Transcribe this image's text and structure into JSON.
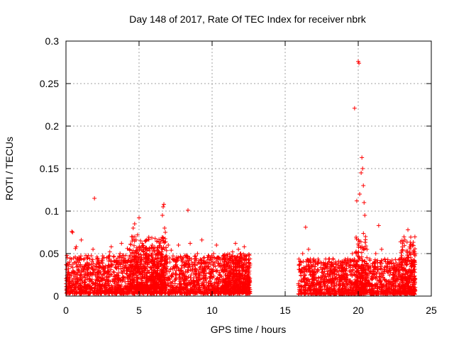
{
  "chart_data": {
    "type": "scatter",
    "title": "Day 148 of 2017, Rate Of TEC Index for receiver nbrk",
    "xlabel": "GPS time / hours",
    "ylabel": "ROTI / TECUs",
    "xlim": [
      0,
      25
    ],
    "ylim": [
      0,
      0.3
    ],
    "grid": true,
    "marker": "+",
    "color": "#ff0000",
    "x_ticks": [
      {
        "value": 0,
        "label": "0"
      },
      {
        "value": 5,
        "label": "5"
      },
      {
        "value": 10,
        "label": "10"
      },
      {
        "value": 15,
        "label": "15"
      },
      {
        "value": 20,
        "label": "20"
      },
      {
        "value": 25,
        "label": "25"
      }
    ],
    "y_ticks": [
      {
        "value": 0,
        "label": "0"
      },
      {
        "value": 0.05,
        "label": "0.05"
      },
      {
        "value": 0.1,
        "label": "0.1"
      },
      {
        "value": 0.15,
        "label": "0.15"
      },
      {
        "value": 0.2,
        "label": "0.2"
      },
      {
        "value": 0.25,
        "label": "0.25"
      },
      {
        "value": 0.3,
        "label": "0.3"
      }
    ],
    "series": [
      {
        "name": "ROTI",
        "points": [
          [
            0.1,
            0.008
          ],
          [
            0.2,
            0.022
          ],
          [
            0.25,
            0.04
          ],
          [
            0.35,
            0.035
          ],
          [
            0.4,
            0.076
          ],
          [
            0.45,
            0.075
          ],
          [
            0.5,
            0.015
          ],
          [
            0.6,
            0.028
          ],
          [
            0.65,
            0.056
          ],
          [
            0.7,
            0.058
          ],
          [
            0.8,
            0.03
          ],
          [
            0.9,
            0.02
          ],
          [
            1.0,
            0.012
          ],
          [
            1.05,
            0.066
          ],
          [
            1.1,
            0.035
          ],
          [
            1.3,
            0.022
          ],
          [
            1.5,
            0.038
          ],
          [
            1.7,
            0.018
          ],
          [
            1.85,
            0.055
          ],
          [
            1.95,
            0.115
          ],
          [
            2.1,
            0.02
          ],
          [
            2.3,
            0.034
          ],
          [
            2.5,
            0.042
          ],
          [
            2.7,
            0.018
          ],
          [
            2.9,
            0.036
          ],
          [
            3.0,
            0.052
          ],
          [
            3.1,
            0.058
          ],
          [
            3.3,
            0.028
          ],
          [
            3.5,
            0.04
          ],
          [
            3.7,
            0.05
          ],
          [
            3.8,
            0.062
          ],
          [
            4.0,
            0.042
          ],
          [
            4.2,
            0.056
          ],
          [
            4.4,
            0.048
          ],
          [
            4.5,
            0.07
          ],
          [
            4.6,
            0.08
          ],
          [
            4.7,
            0.085
          ],
          [
            4.8,
            0.066
          ],
          [
            4.9,
            0.072
          ],
          [
            5.0,
            0.092
          ],
          [
            5.1,
            0.065
          ],
          [
            5.3,
            0.052
          ],
          [
            5.5,
            0.044
          ],
          [
            5.7,
            0.056
          ],
          [
            5.9,
            0.06
          ],
          [
            6.1,
            0.038
          ],
          [
            6.3,
            0.05
          ],
          [
            6.5,
            0.066
          ],
          [
            6.6,
            0.095
          ],
          [
            6.65,
            0.105
          ],
          [
            6.7,
            0.108
          ],
          [
            6.75,
            0.08
          ],
          [
            6.8,
            0.075
          ],
          [
            7.0,
            0.06
          ],
          [
            7.2,
            0.054
          ],
          [
            7.5,
            0.04
          ],
          [
            7.7,
            0.06
          ],
          [
            7.9,
            0.042
          ],
          [
            8.1,
            0.034
          ],
          [
            8.35,
            0.101
          ],
          [
            8.5,
            0.062
          ],
          [
            8.8,
            0.04
          ],
          [
            9.0,
            0.05
          ],
          [
            9.3,
            0.066
          ],
          [
            9.5,
            0.035
          ],
          [
            9.8,
            0.032
          ],
          [
            10.1,
            0.05
          ],
          [
            10.3,
            0.06
          ],
          [
            10.5,
            0.028
          ],
          [
            10.8,
            0.03
          ],
          [
            11.0,
            0.036
          ],
          [
            11.2,
            0.044
          ],
          [
            11.4,
            0.052
          ],
          [
            11.6,
            0.062
          ],
          [
            11.8,
            0.055
          ],
          [
            12.0,
            0.04
          ],
          [
            12.2,
            0.058
          ],
          [
            12.4,
            0.03
          ],
          [
            16.1,
            0.018
          ],
          [
            16.2,
            0.05
          ],
          [
            16.4,
            0.081
          ],
          [
            16.6,
            0.055
          ],
          [
            16.9,
            0.03
          ],
          [
            17.2,
            0.038
          ],
          [
            17.5,
            0.028
          ],
          [
            17.8,
            0.036
          ],
          [
            18.1,
            0.03
          ],
          [
            18.4,
            0.032
          ],
          [
            18.7,
            0.022
          ],
          [
            19.0,
            0.03
          ],
          [
            19.3,
            0.04
          ],
          [
            19.6,
            0.05
          ],
          [
            19.75,
            0.221
          ],
          [
            19.9,
            0.112
          ],
          [
            20.0,
            0.276
          ],
          [
            20.05,
            0.274
          ],
          [
            20.1,
            0.12
          ],
          [
            20.2,
            0.145
          ],
          [
            20.25,
            0.163
          ],
          [
            20.3,
            0.15
          ],
          [
            20.35,
            0.13
          ],
          [
            20.4,
            0.11
          ],
          [
            20.45,
            0.095
          ],
          [
            20.5,
            0.07
          ],
          [
            20.6,
            0.055
          ],
          [
            20.8,
            0.042
          ],
          [
            21.0,
            0.038
          ],
          [
            21.2,
            0.05
          ],
          [
            21.4,
            0.083
          ],
          [
            21.6,
            0.055
          ],
          [
            21.9,
            0.035
          ],
          [
            22.2,
            0.03
          ],
          [
            22.5,
            0.036
          ],
          [
            22.8,
            0.028
          ],
          [
            23.0,
            0.04
          ],
          [
            23.2,
            0.066
          ],
          [
            23.4,
            0.078
          ],
          [
            23.6,
            0.06
          ],
          [
            23.8,
            0.035
          ]
        ],
        "dense_bands": [
          {
            "x_start": 0.0,
            "x_end": 12.6,
            "y_min": 0.003,
            "y_max": 0.048
          },
          {
            "x_start": 4.3,
            "x_end": 6.9,
            "y_min": 0.008,
            "y_max": 0.07
          },
          {
            "x_start": 10.8,
            "x_end": 12.6,
            "y_min": 0.004,
            "y_max": 0.05
          },
          {
            "x_start": 15.9,
            "x_end": 23.9,
            "y_min": 0.002,
            "y_max": 0.044
          },
          {
            "x_start": 19.8,
            "x_end": 20.6,
            "y_min": 0.004,
            "y_max": 0.075
          },
          {
            "x_start": 22.9,
            "x_end": 23.9,
            "y_min": 0.005,
            "y_max": 0.07
          }
        ]
      }
    ]
  }
}
